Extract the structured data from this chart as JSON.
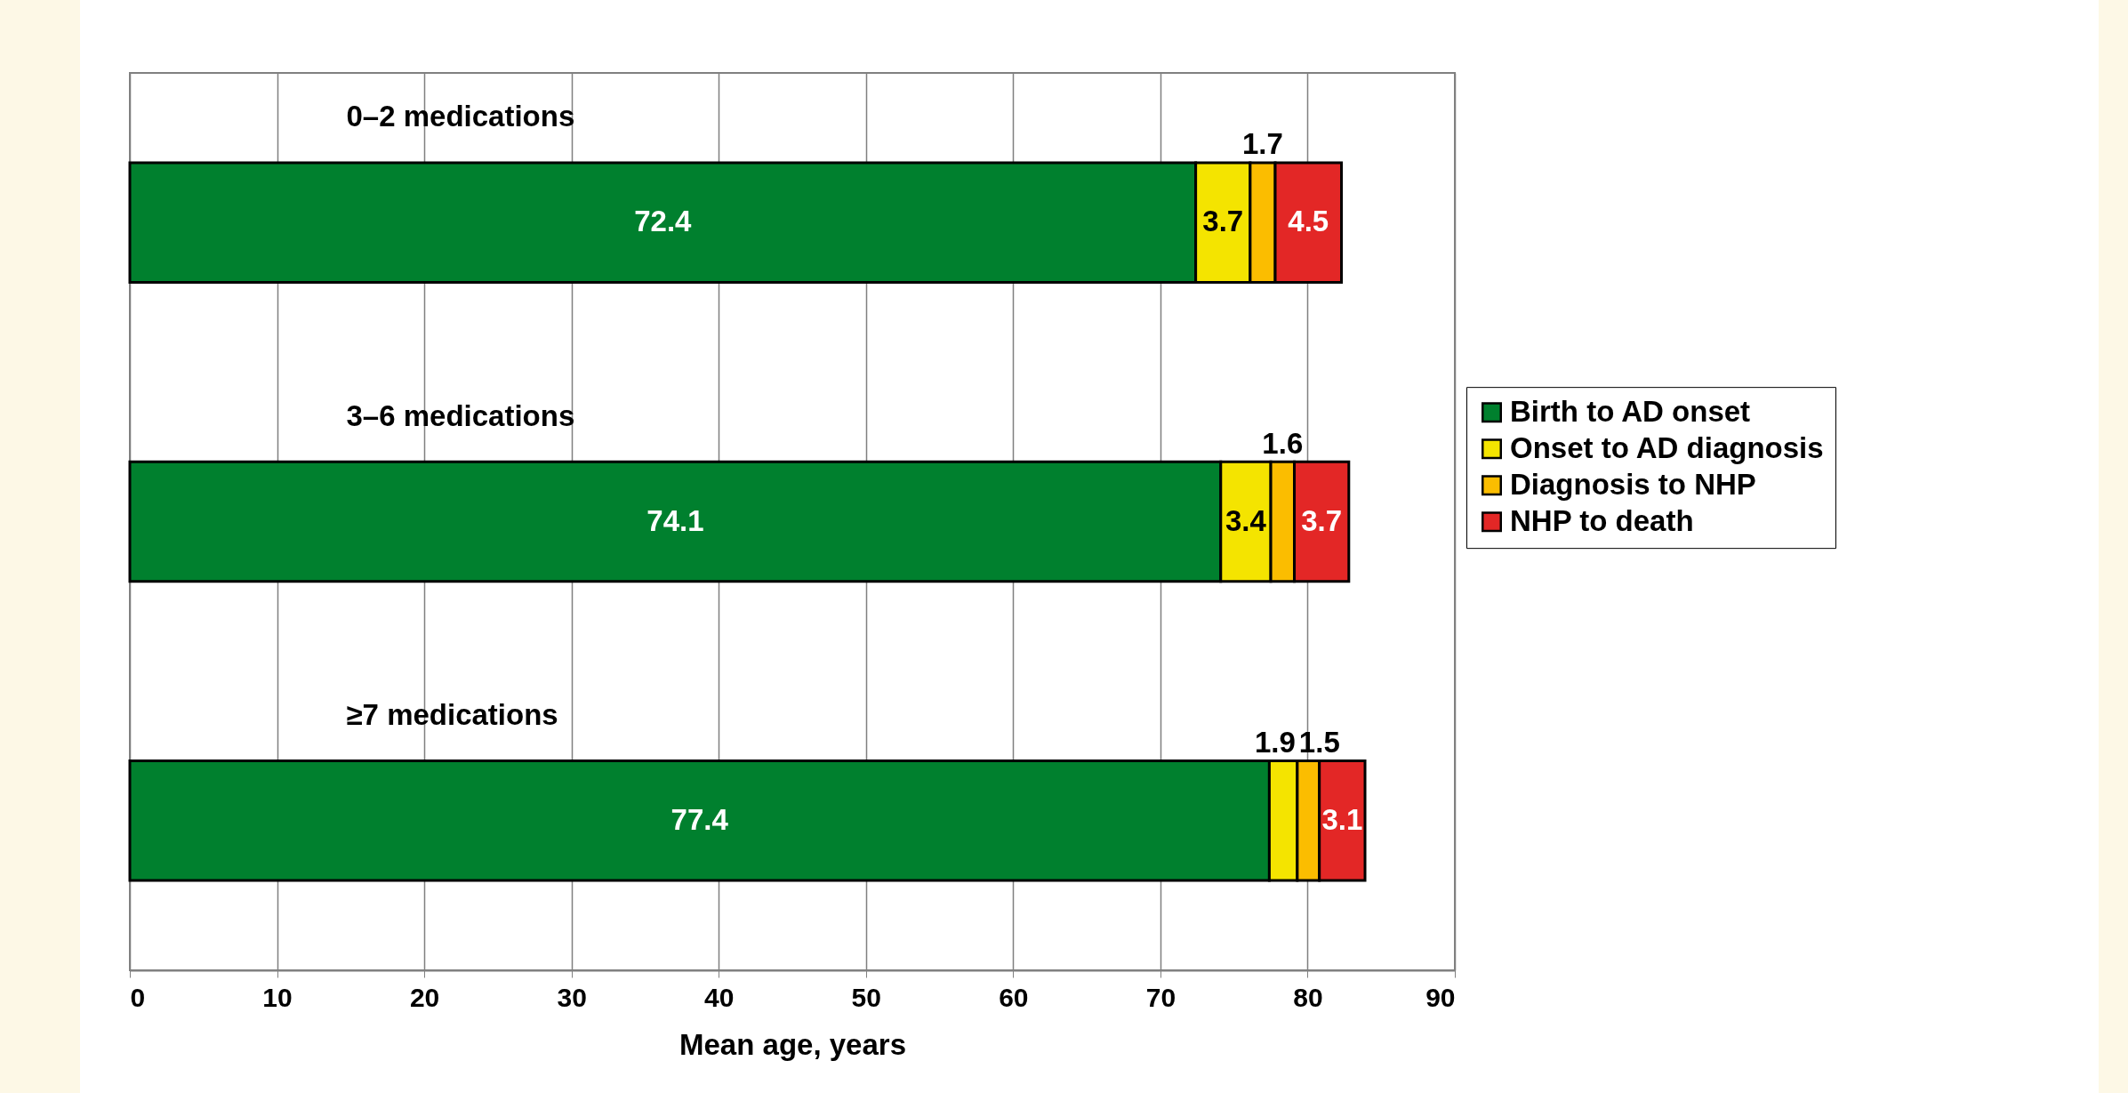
{
  "chart_data": {
    "type": "bar",
    "orientation": "horizontal",
    "stacked": true,
    "xlabel": "Mean age, years",
    "categories": [
      "0–2 medications",
      "3–6 medications",
      "≥7 medications"
    ],
    "series": [
      {
        "name": "Birth to AD onset",
        "color": "#00802e",
        "values": [
          72.4,
          74.1,
          77.4
        ]
      },
      {
        "name": "Onset to AD diagnosis",
        "color": "#f4e400",
        "values": [
          3.7,
          3.4,
          1.9
        ]
      },
      {
        "name": "Diagnosis to NHP",
        "color": "#fbbd00",
        "values": [
          1.7,
          1.6,
          1.5
        ]
      },
      {
        "name": "NHP to death",
        "color": "#e32726",
        "values": [
          4.5,
          3.7,
          3.1
        ]
      }
    ],
    "xlim": [
      0,
      90
    ],
    "xticks": [
      0,
      10,
      20,
      30,
      40,
      50,
      60,
      70,
      80,
      90
    ],
    "grid": "x",
    "legend": "right",
    "data_labels": true
  }
}
